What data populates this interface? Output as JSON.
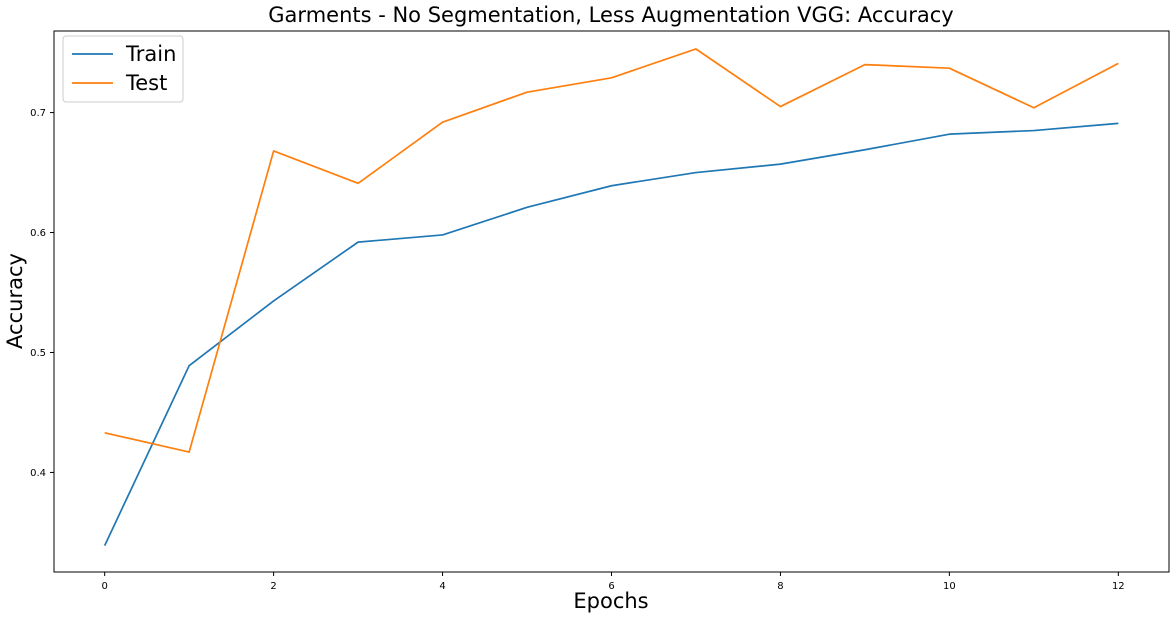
{
  "chart_data": {
    "type": "line",
    "title": "Garments - No Segmentation, Less Augmentation VGG: Accuracy",
    "xlabel": "Epochs",
    "ylabel": "Accuracy",
    "x": [
      0,
      1,
      2,
      3,
      4,
      5,
      6,
      7,
      8,
      9,
      10,
      11,
      12
    ],
    "xlim": [
      -0.6,
      12.6
    ],
    "ylim": [
      0.317,
      0.768
    ],
    "xticks": [
      0,
      2,
      4,
      6,
      8,
      10,
      12
    ],
    "yticks": [
      0.4,
      0.5,
      0.6,
      0.7
    ],
    "ytick_labels": [
      "0.4",
      "0.5",
      "0.6",
      "0.7"
    ],
    "grid": false,
    "legend_position": "top-left",
    "series": [
      {
        "name": "Train",
        "color": "#1f77b4",
        "values": [
          0.339,
          0.489,
          0.543,
          0.592,
          0.598,
          0.621,
          0.639,
          0.65,
          0.657,
          0.669,
          0.682,
          0.685,
          0.691
        ]
      },
      {
        "name": "Test",
        "color": "#ff7f0e",
        "values": [
          0.433,
          0.417,
          0.668,
          0.641,
          0.692,
          0.717,
          0.729,
          0.753,
          0.705,
          0.74,
          0.737,
          0.704,
          0.741
        ]
      }
    ]
  }
}
